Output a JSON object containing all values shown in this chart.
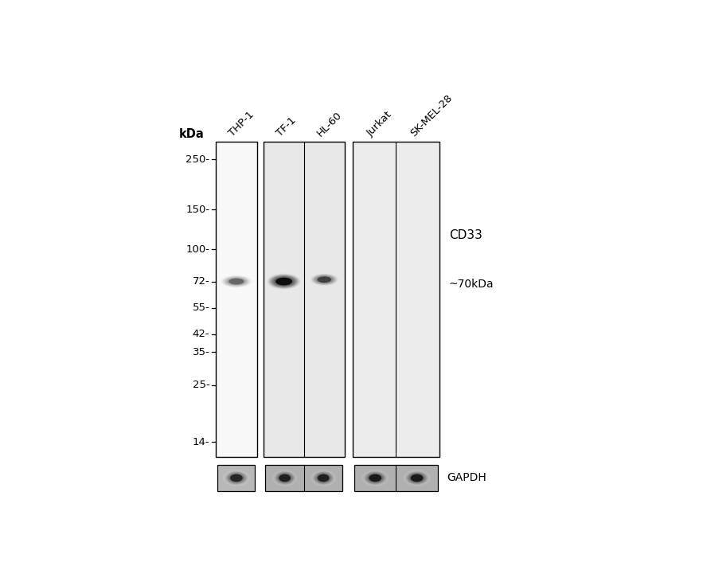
{
  "fig_width": 8.88,
  "fig_height": 7.11,
  "bg_color": "#ffffff",
  "lane_labels": [
    "THP-1",
    "TF-1",
    "HL-60",
    "Jurkat",
    "SK-MEL-28"
  ],
  "kda_label": "kDa",
  "marker_positions": [
    250,
    150,
    100,
    72,
    55,
    42,
    35,
    25,
    14
  ],
  "marker_labels": [
    "250-",
    "150-",
    "100-",
    "72-",
    "55-",
    "42-",
    "35-",
    "25-",
    "14-"
  ],
  "cd33_label": "CD33",
  "size_label": "~70kDa",
  "gapdh_label": "GAPDH",
  "panel_bg_1": "#f5f5f5",
  "panel_bg_2": "#efefef",
  "panel_bg_3": "#f0f0f0",
  "gapdh_bg": "#c8c8c8"
}
